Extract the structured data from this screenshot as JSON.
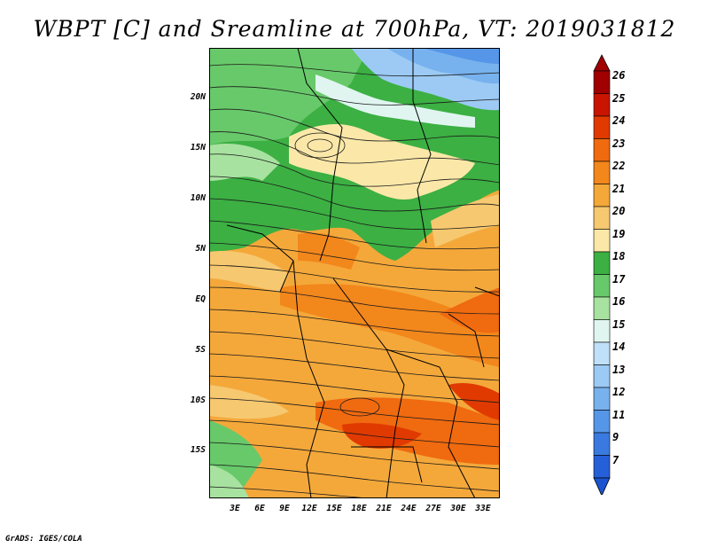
{
  "title": "WBPT [C] and Sreamline at 700hPa, VT: 2019031812",
  "credit": "GrADS: IGES/COLA",
  "map": {
    "lat_labels": [
      "20N",
      "15N",
      "10N",
      "5N",
      "EQ",
      "5S",
      "10S",
      "15S"
    ],
    "lon_labels": [
      "3E",
      "6E",
      "9E",
      "12E",
      "15E",
      "18E",
      "21E",
      "24E",
      "27E",
      "30E",
      "33E"
    ],
    "lat_range": [
      -19,
      24
    ],
    "lon_range": [
      0,
      35
    ],
    "shaded_variable": "WBPT",
    "units": "C",
    "level": "700hPa",
    "valid_time": "2019031812"
  },
  "colorbar": {
    "labels": [
      "26",
      "25",
      "24",
      "23",
      "22",
      "21",
      "20",
      "19",
      "18",
      "17",
      "16",
      "15",
      "14",
      "13",
      "12",
      "11",
      "9",
      "7"
    ],
    "colors": [
      "#a00000",
      "#c81400",
      "#e03a00",
      "#f06a10",
      "#f2871c",
      "#f4a83a",
      "#f6c870",
      "#fbe8a8",
      "#3cb043",
      "#68c96a",
      "#a8e2a0",
      "#e0f5f0",
      "#bfe0f8",
      "#9ccaf4",
      "#78b2ee",
      "#5696e8",
      "#3a7ae0",
      "#2660d8"
    ],
    "top_color": "#a00000",
    "bottom_color": "#1c54d0"
  }
}
